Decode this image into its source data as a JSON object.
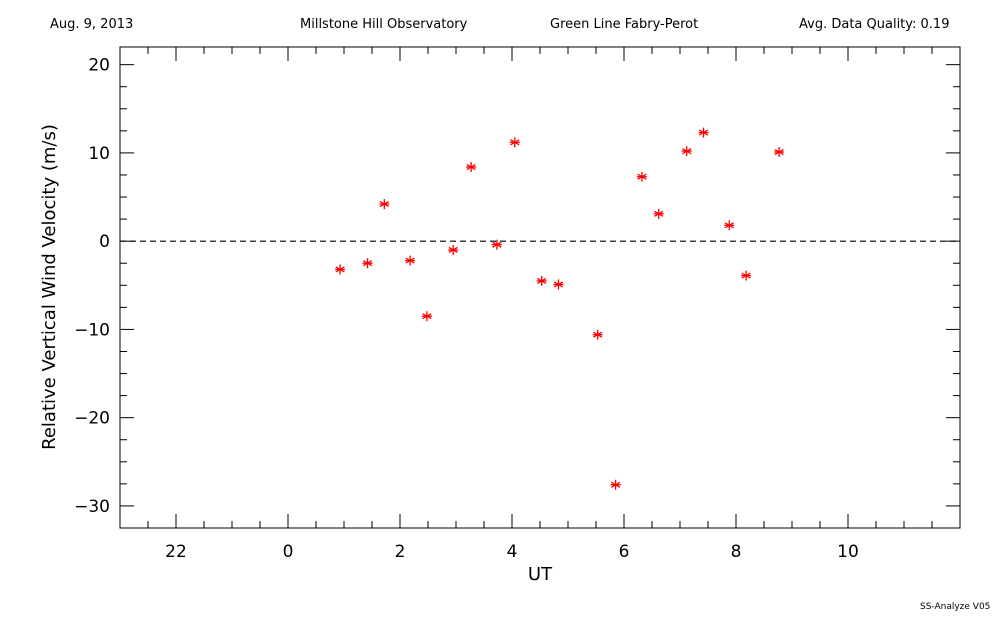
{
  "header": {
    "date": "Aug. 9, 2013",
    "observatory": "Millstone Hill Observatory",
    "instrument": "Green Line Fabry-Perot",
    "quality": "Avg. Data Quality: 0.19"
  },
  "footer": "SS-Analyze V05",
  "chart_data": {
    "type": "scatter",
    "xlabel": "UT",
    "ylabel": "Relative Vertical Wind Velocity (m/s)",
    "x_ticks": [
      "22",
      "0",
      "2",
      "4",
      "6",
      "8",
      "10"
    ],
    "y_ticks": [
      "20",
      "10",
      "0",
      "-10",
      "-20",
      "-30"
    ],
    "xlim": [
      -3,
      12
    ],
    "ylim": [
      -32.5,
      22
    ],
    "zero_line": true,
    "marker_color": "#ff0000",
    "marker": "asterisk",
    "series": [
      {
        "x": [
          0.93,
          1.42,
          1.72,
          2.18,
          2.48,
          2.95,
          3.27,
          3.73,
          4.05,
          4.53,
          4.83,
          5.53,
          5.85,
          6.32,
          6.62,
          7.12,
          7.42,
          7.88,
          8.18,
          8.77
        ],
        "y": [
          -3.2,
          -2.5,
          4.2,
          -2.2,
          -8.5,
          -1.0,
          8.4,
          -0.4,
          11.2,
          -4.5,
          -4.9,
          -10.6,
          -27.6,
          7.3,
          3.1,
          10.2,
          12.3,
          1.8,
          -3.9,
          10.1
        ]
      }
    ]
  }
}
